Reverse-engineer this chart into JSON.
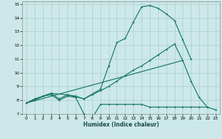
{
  "xlabel": "Humidex (Indice chaleur)",
  "xlim": [
    -0.5,
    23.5
  ],
  "ylim": [
    7,
    15.2
  ],
  "yticks": [
    7,
    8,
    9,
    10,
    11,
    12,
    13,
    14,
    15
  ],
  "xticks": [
    0,
    1,
    2,
    3,
    4,
    5,
    6,
    7,
    8,
    9,
    10,
    11,
    12,
    13,
    14,
    15,
    16,
    17,
    18,
    19,
    20,
    21,
    22,
    23
  ],
  "background_color": "#cce8e8",
  "grid_color": "#aacccc",
  "line_color": "#1a7a6a",
  "line1_x": [
    0,
    1,
    2,
    3,
    4,
    5,
    6,
    7,
    8,
    9,
    10,
    11,
    12,
    13,
    14,
    15,
    16,
    17,
    18,
    19,
    20,
    21,
    22,
    23
  ],
  "line1_y": [
    7.8,
    8.1,
    8.3,
    8.4,
    8.0,
    8.3,
    8.2,
    7.0,
    6.7,
    7.7,
    7.7,
    7.7,
    7.7,
    7.7,
    7.7,
    7.5,
    7.5,
    7.5,
    7.5,
    7.5,
    7.5,
    7.5,
    7.5,
    7.3
  ],
  "line2_x": [
    0,
    1,
    2,
    3,
    4,
    5,
    6,
    7,
    8,
    9,
    10,
    11,
    12,
    13,
    14,
    15,
    16,
    17,
    18,
    19,
    20,
    21,
    22
  ],
  "line2_y": [
    7.8,
    8.0,
    8.3,
    8.5,
    8.1,
    8.4,
    8.3,
    8.1,
    8.4,
    8.7,
    9.0,
    9.4,
    9.8,
    10.2,
    10.5,
    10.9,
    11.3,
    11.7,
    12.1,
    10.9,
    9.4,
    8.2,
    7.5
  ],
  "line3_x": [
    0,
    3,
    5,
    7,
    9,
    10,
    11,
    12,
    13,
    14,
    15,
    16,
    17,
    18,
    19,
    20
  ],
  "line3_y": [
    7.8,
    8.5,
    8.4,
    8.1,
    8.8,
    10.5,
    12.2,
    12.5,
    13.7,
    14.8,
    14.9,
    14.7,
    14.3,
    13.8,
    12.4,
    11.0
  ],
  "line4_x": [
    0,
    19
  ],
  "line4_y": [
    7.8,
    10.9
  ]
}
